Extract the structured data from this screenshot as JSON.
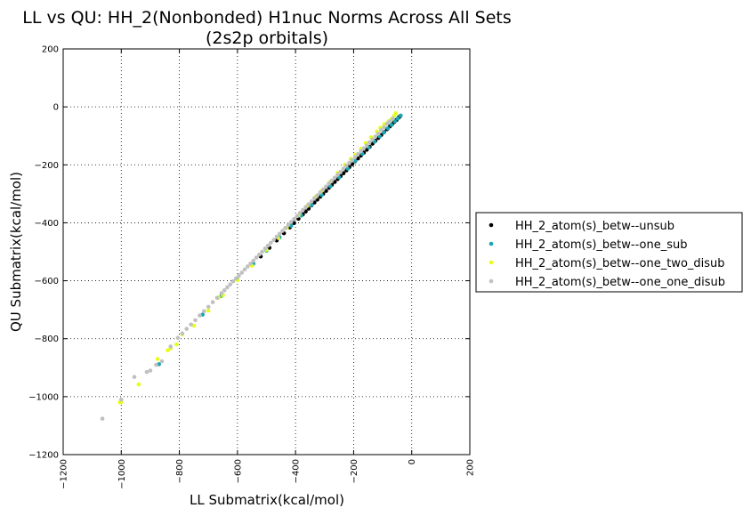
{
  "chart_data": {
    "type": "scatter",
    "title": "LL vs QU: HH_2(Nonbonded) H1nuc Norms Across All Sets",
    "subtitle": "(2s2p orbitals)",
    "xlabel": "LL Submatrix(kcal/mol)",
    "ylabel": "QU Submatrix(kcal/mol)",
    "xlim": [
      -1200,
      200
    ],
    "ylim": [
      -1200,
      200
    ],
    "xticks": [
      -1200,
      -1000,
      -800,
      -600,
      -400,
      -200,
      0,
      200
    ],
    "yticks": [
      -1200,
      -1000,
      -800,
      -600,
      -400,
      -200,
      0,
      200
    ],
    "xtick_labels": [
      "−1200",
      "−1000",
      "−800",
      "−600",
      "−400",
      "−200",
      "0",
      "200"
    ],
    "ytick_labels": [
      "−1200",
      "−1000",
      "−800",
      "−600",
      "−400",
      "−200",
      "0",
      "200"
    ],
    "grid": true,
    "legend_position": "right, outside plot",
    "series": [
      {
        "name": "HH_2_atom(s)_betw--unsub",
        "color": "#000000",
        "points": [
          [
            -40,
            -32
          ],
          [
            -45,
            -37
          ],
          [
            -52,
            -45
          ],
          [
            -60,
            -52
          ],
          [
            -68,
            -60
          ],
          [
            -75,
            -67
          ],
          [
            -85,
            -77
          ],
          [
            -95,
            -87
          ],
          [
            -105,
            -97
          ],
          [
            -115,
            -107
          ],
          [
            -125,
            -117
          ],
          [
            -135,
            -127
          ],
          [
            -145,
            -138
          ],
          [
            -155,
            -148
          ],
          [
            -165,
            -158
          ],
          [
            -175,
            -168
          ],
          [
            -185,
            -178
          ],
          [
            -195,
            -188
          ],
          [
            -205,
            -198
          ],
          [
            -215,
            -208
          ],
          [
            -225,
            -219
          ],
          [
            -235,
            -229
          ],
          [
            -245,
            -239
          ],
          [
            -255,
            -249
          ],
          [
            -265,
            -259
          ],
          [
            -275,
            -269
          ],
          [
            -285,
            -279
          ],
          [
            -295,
            -290
          ],
          [
            -305,
            -300
          ],
          [
            -315,
            -310
          ],
          [
            -325,
            -320
          ],
          [
            -335,
            -330
          ],
          [
            -345,
            -340
          ],
          [
            -355,
            -351
          ],
          [
            -365,
            -361
          ],
          [
            -375,
            -371
          ],
          [
            -390,
            -386
          ],
          [
            -405,
            -401
          ],
          [
            -420,
            -416
          ],
          [
            -440,
            -436
          ],
          [
            -465,
            -461
          ],
          [
            -490,
            -486
          ],
          [
            -520,
            -516
          ]
        ]
      },
      {
        "name": "HH_2_atom(s)_betw--one_sub",
        "color": "#17a6b0",
        "points": [
          [
            -38,
            -30
          ],
          [
            -48,
            -40
          ],
          [
            -58,
            -50
          ],
          [
            -70,
            -62
          ],
          [
            -82,
            -74
          ],
          [
            -96,
            -88
          ],
          [
            -110,
            -102
          ],
          [
            -128,
            -120
          ],
          [
            -148,
            -140
          ],
          [
            -170,
            -162
          ],
          [
            -195,
            -187
          ],
          [
            -220,
            -213
          ],
          [
            -250,
            -243
          ],
          [
            -280,
            -274
          ],
          [
            -310,
            -304
          ],
          [
            -345,
            -339
          ],
          [
            -380,
            -375
          ],
          [
            -415,
            -410
          ],
          [
            -455,
            -450
          ],
          [
            -500,
            -496
          ],
          [
            -545,
            -541
          ],
          [
            -600,
            -596
          ],
          [
            -655,
            -652
          ],
          [
            -720,
            -717
          ],
          [
            -870,
            -888
          ]
        ]
      },
      {
        "name": "HH_2_atom(s)_betw--one_two_disub",
        "color": "#e5ff1a",
        "points": [
          [
            -55,
            -22
          ],
          [
            -60,
            -30
          ],
          [
            -70,
            -42
          ],
          [
            -80,
            -50
          ],
          [
            -95,
            -60
          ],
          [
            -108,
            -72
          ],
          [
            -120,
            -85
          ],
          [
            -140,
            -105
          ],
          [
            -158,
            -125
          ],
          [
            -175,
            -145
          ],
          [
            -195,
            -165
          ],
          [
            -210,
            -180
          ],
          [
            -230,
            -200
          ],
          [
            -255,
            -228
          ],
          [
            -280,
            -258
          ],
          [
            -310,
            -290
          ],
          [
            -330,
            -310
          ],
          [
            -360,
            -342
          ],
          [
            -390,
            -375
          ],
          [
            -430,
            -418
          ],
          [
            -460,
            -452
          ],
          [
            -500,
            -493
          ],
          [
            -550,
            -548
          ],
          [
            -600,
            -598
          ],
          [
            -650,
            -650
          ],
          [
            -665,
            -658
          ],
          [
            -700,
            -703
          ],
          [
            -750,
            -755
          ],
          [
            -790,
            -785
          ],
          [
            -810,
            -820
          ],
          [
            -830,
            -833
          ],
          [
            -840,
            -840
          ],
          [
            -875,
            -870
          ],
          [
            -940,
            -958
          ],
          [
            -1000,
            -1018
          ],
          [
            -1005,
            -1020
          ]
        ]
      },
      {
        "name": "HH_2_atom(s)_betw--one_one_disub",
        "color": "#c0c0c0",
        "points": [
          [
            -65,
            -40
          ],
          [
            -75,
            -50
          ],
          [
            -85,
            -58
          ],
          [
            -95,
            -70
          ],
          [
            -105,
            -80
          ],
          [
            -115,
            -92
          ],
          [
            -125,
            -102
          ],
          [
            -135,
            -112
          ],
          [
            -145,
            -122
          ],
          [
            -155,
            -133
          ],
          [
            -165,
            -143
          ],
          [
            -175,
            -153
          ],
          [
            -185,
            -163
          ],
          [
            -195,
            -173
          ],
          [
            -205,
            -183
          ],
          [
            -215,
            -193
          ],
          [
            -225,
            -203
          ],
          [
            -235,
            -213
          ],
          [
            -245,
            -224
          ],
          [
            -255,
            -234
          ],
          [
            -265,
            -244
          ],
          [
            -275,
            -254
          ],
          [
            -285,
            -264
          ],
          [
            -295,
            -275
          ],
          [
            -305,
            -285
          ],
          [
            -315,
            -295
          ],
          [
            -325,
            -305
          ],
          [
            -335,
            -315
          ],
          [
            -345,
            -326
          ],
          [
            -355,
            -336
          ],
          [
            -365,
            -346
          ],
          [
            -375,
            -356
          ],
          [
            -385,
            -366
          ],
          [
            -395,
            -377
          ],
          [
            -405,
            -387
          ],
          [
            -415,
            -397
          ],
          [
            -425,
            -407
          ],
          [
            -435,
            -418
          ],
          [
            -445,
            -428
          ],
          [
            -455,
            -438
          ],
          [
            -465,
            -448
          ],
          [
            -475,
            -459
          ],
          [
            -485,
            -469
          ],
          [
            -495,
            -479
          ],
          [
            -505,
            -489
          ],
          [
            -515,
            -500
          ],
          [
            -525,
            -510
          ],
          [
            -535,
            -520
          ],
          [
            -545,
            -531
          ],
          [
            -555,
            -541
          ],
          [
            -565,
            -551
          ],
          [
            -575,
            -561
          ],
          [
            -585,
            -572
          ],
          [
            -595,
            -582
          ],
          [
            -605,
            -592
          ],
          [
            -615,
            -602
          ],
          [
            -625,
            -613
          ],
          [
            -635,
            -623
          ],
          [
            -645,
            -633
          ],
          [
            -655,
            -643
          ],
          [
            -670,
            -659
          ],
          [
            -685,
            -674
          ],
          [
            -700,
            -690
          ],
          [
            -715,
            -705
          ],
          [
            -730,
            -720
          ],
          [
            -745,
            -736
          ],
          [
            -760,
            -751
          ],
          [
            -775,
            -766
          ],
          [
            -790,
            -782
          ],
          [
            -805,
            -797
          ],
          [
            -830,
            -827
          ],
          [
            -860,
            -878
          ],
          [
            -880,
            -890
          ],
          [
            -900,
            -910
          ],
          [
            -912,
            -915
          ],
          [
            -955,
            -932
          ],
          [
            -1000,
            -1010
          ],
          [
            -1065,
            -1076
          ]
        ]
      }
    ]
  }
}
